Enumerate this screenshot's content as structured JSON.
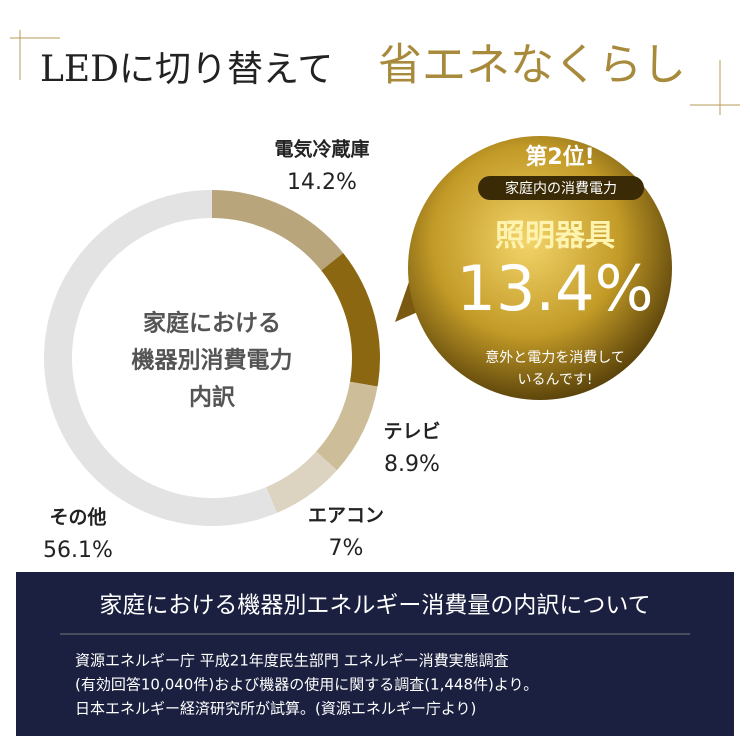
{
  "header": {
    "title_plain": "LEDに切り替えて",
    "title_accent": "省エネなくらし"
  },
  "chart_data": {
    "type": "donut",
    "center_label": [
      "家庭における",
      "機器別消費電力",
      "内訳"
    ],
    "categories": [
      "電気冷蔵庫",
      "照明器具",
      "テレビ",
      "エアコン",
      "その他"
    ],
    "values": [
      14.2,
      13.4,
      8.9,
      7,
      56.1
    ],
    "value_labels": [
      "14.2%",
      "13.4%",
      "8.9%",
      "7%",
      "56.1%"
    ],
    "colors": [
      "#b9a57c",
      "#8b6712",
      "#cdbd99",
      "#ddd3c1",
      "#e3e3e3"
    ]
  },
  "bubble": {
    "rank": "第2位!",
    "subtitle": "家庭内の消費電力",
    "note_lines": [
      "意外と電力を消費して",
      "いるんです!"
    ]
  },
  "footer": {
    "title": "家庭における機器別エネルギー消費量の内訳について",
    "notes": [
      "資源エネルギー庁 平成21年度民生部門 エネルギー消費実態調査",
      "(有効回答10,040件)および機器の使用に関する調査(1,448件)より。",
      "日本エネルギー経済研究所が試算。(資源エネルギー庁より)"
    ]
  }
}
